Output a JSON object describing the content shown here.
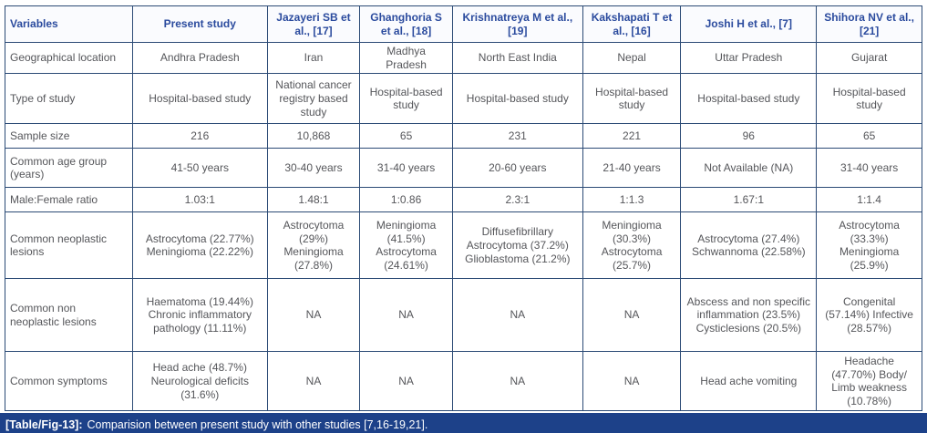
{
  "colors": {
    "border": "#2b4a75",
    "header_text": "#2b4b9e",
    "header_bg": "#fafbfe",
    "body_text": "#55565a",
    "caption_bg": "#1d4189",
    "caption_text": "#ffffff"
  },
  "table": {
    "columns": [
      "Variables",
      "Present study",
      "Jazayeri SB et al., [17]",
      "Ghanghoria S et al., [18]",
      "Krishnatreya M et al., [19]",
      "Kakshapati T et al., [16]",
      "Joshi H et al., [7]",
      "Shihora NV et al., [21]"
    ],
    "rows": [
      {
        "label": "Geographical location",
        "cells": [
          "Andhra Pradesh",
          "Iran",
          "Madhya Pradesh",
          "North East India",
          "Nepal",
          "Uttar Pradesh",
          "Gujarat"
        ]
      },
      {
        "label": "Type of study",
        "cells": [
          "Hospital-based study",
          "National cancer registry based study",
          "Hospital-based study",
          "Hospital-based study",
          "Hospital-based study",
          "Hospital-based study",
          "Hospital-based study"
        ]
      },
      {
        "label": "Sample size",
        "cells": [
          "216",
          "10,868",
          "65",
          "231",
          "221",
          "96",
          "65"
        ]
      },
      {
        "label": "Common age group (years)",
        "cells": [
          "41-50 years",
          "30-40 years",
          "31-40 years",
          "20-60 years",
          "21-40 years",
          "Not Available (NA)",
          "31-40 years"
        ]
      },
      {
        "label": "Male:Female ratio",
        "cells": [
          "1.03:1",
          "1.48:1",
          "1:0.86",
          "2.3:1",
          "1:1.3",
          "1.67:1",
          "1:1.4"
        ]
      },
      {
        "label": "Common neoplastic lesions",
        "cells": [
          "Astrocytoma (22.77%)\nMeningioma (22.22%)",
          "Astrocytoma (29%)\nMeningioma (27.8%)",
          "Meningioma (41.5%)\nAstrocytoma (24.61%)",
          "Diffusefibrillary Astrocytoma (37.2%)\nGlioblastoma (21.2%)",
          "Meningioma (30.3%)\nAstrocytoma (25.7%)",
          "Astrocytoma (27.4%)\nSchwannoma (22.58%)",
          "Astrocytoma (33.3%)\nMeningioma (25.9%)"
        ]
      },
      {
        "label": "Common non neoplastic lesions",
        "cells": [
          "Haematoma (19.44%)\nChronic inflammatory pathology (11.11%)",
          "NA",
          "NA",
          "NA",
          "NA",
          "Abscess and non specific inflammation (23.5%) Cysticlesions (20.5%)",
          "Congenital (57.14%) Infective (28.57%)"
        ]
      },
      {
        "label": "Common symptoms",
        "cells": [
          "Head ache (48.7%)\nNeurological deficits (31.6%)",
          "NA",
          "NA",
          "NA",
          "NA",
          "Head ache vomiting",
          "Headache (47.70%) Body/ Limb weakness (10.78%)"
        ]
      }
    ]
  },
  "caption": {
    "tag": "[Table/Fig-13]:",
    "text": "Comparision between present study with other studies [7,16-19,21]."
  }
}
